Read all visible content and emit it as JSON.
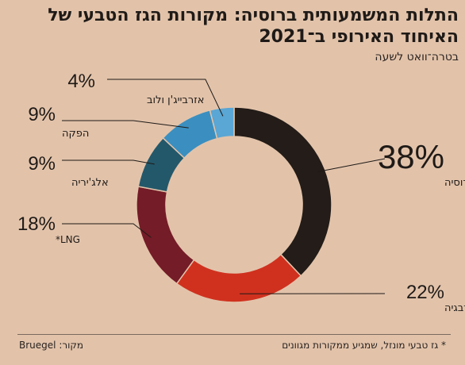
{
  "title": "התלות המשמעותית ברוסיה: מקורות הגז הטבעי של האיחוד האירופי ב־2021",
  "subtitle": "בטרה־וואט לשעה",
  "source": "מקור: Bruegel",
  "footnote": "* גז טבעי מונזל, שמגיע ממקורות מגוונים",
  "chart_data": {
    "type": "pie",
    "donut": true,
    "title": "התלות המשמעותית ברוסיה: מקורות הגז הטבעי של האיחוד האירופי ב־2021",
    "subtitle": "בטרה־וואט לשעה",
    "unit": "%",
    "slices": [
      {
        "label": "רוסיה",
        "value": 38,
        "display": "38%",
        "color": "#231c18"
      },
      {
        "label": "נורבגיה",
        "value": 22,
        "display": "22%",
        "color": "#d0311f"
      },
      {
        "label": "LNG*",
        "value": 18,
        "display": "18%",
        "color": "#741c27"
      },
      {
        "label": "אלג'יריה",
        "value": 9,
        "display": "9%",
        "color": "#23586a"
      },
      {
        "label": "הפקה",
        "value": 9,
        "display": "9%",
        "color": "#3a8fc0"
      },
      {
        "label": "אזרבייג'ן ולוב",
        "value": 4,
        "display": "4%",
        "color": "#5aa6d4"
      }
    ]
  }
}
